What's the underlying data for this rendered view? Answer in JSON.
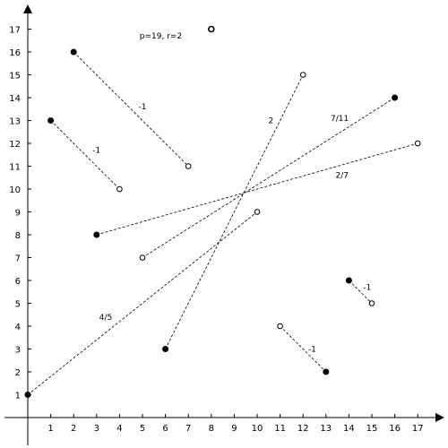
{
  "chart_data": {
    "type": "scatter",
    "title": "",
    "xlabel": "",
    "ylabel": "",
    "xlim": [
      0,
      18
    ],
    "ylim": [
      0,
      18
    ],
    "x_ticks": [
      1,
      2,
      3,
      4,
      5,
      6,
      7,
      8,
      9,
      10,
      11,
      12,
      13,
      14,
      15,
      16,
      17
    ],
    "y_ticks": [
      1,
      2,
      3,
      4,
      5,
      6,
      7,
      8,
      9,
      10,
      11,
      12,
      13,
      14,
      15,
      16,
      17
    ],
    "grid": false,
    "annotations": [
      {
        "text": "p=19, r=2",
        "x": 5.8,
        "y": 16.7
      }
    ],
    "isolated_points": [
      {
        "x": 8,
        "y": 17,
        "filled": false
      }
    ],
    "segments": [
      {
        "start": {
          "x": 2,
          "y": 16,
          "filled": true
        },
        "end": {
          "x": 7,
          "y": 11,
          "filled": false
        },
        "label": "-1",
        "label_pos": [
          5,
          13.6
        ]
      },
      {
        "start": {
          "x": 1,
          "y": 13,
          "filled": true
        },
        "end": {
          "x": 4,
          "y": 10,
          "filled": false
        },
        "label": "-1",
        "label_pos": [
          3,
          11.7
        ]
      },
      {
        "start": {
          "x": 6,
          "y": 3,
          "filled": true
        },
        "end": {
          "x": 12,
          "y": 15,
          "filled": false
        },
        "label": "2",
        "label_pos": [
          10.6,
          13
        ]
      },
      {
        "start": {
          "x": 5,
          "y": 7,
          "filled": false
        },
        "end": {
          "x": 16,
          "y": 14,
          "filled": true
        },
        "label": "7/11",
        "label_pos": [
          13.6,
          13.1
        ]
      },
      {
        "start": {
          "x": 3,
          "y": 8,
          "filled": true
        },
        "end": {
          "x": 17,
          "y": 12,
          "filled": false
        },
        "label": "2/7",
        "label_pos": [
          13.7,
          10.6
        ]
      },
      {
        "start": {
          "x": 0,
          "y": 1,
          "filled": true
        },
        "end": {
          "x": 10,
          "y": 9,
          "filled": false
        },
        "label": "4/5",
        "label_pos": [
          3.4,
          4.4
        ]
      },
      {
        "start": {
          "x": 14,
          "y": 6,
          "filled": true
        },
        "end": {
          "x": 15,
          "y": 5,
          "filled": false
        },
        "label": "-1",
        "label_pos": [
          14.8,
          5.7
        ]
      },
      {
        "start": {
          "x": 11,
          "y": 4,
          "filled": false
        },
        "end": {
          "x": 13,
          "y": 2,
          "filled": true
        },
        "label": "-1",
        "label_pos": [
          12.4,
          3
        ]
      }
    ]
  }
}
